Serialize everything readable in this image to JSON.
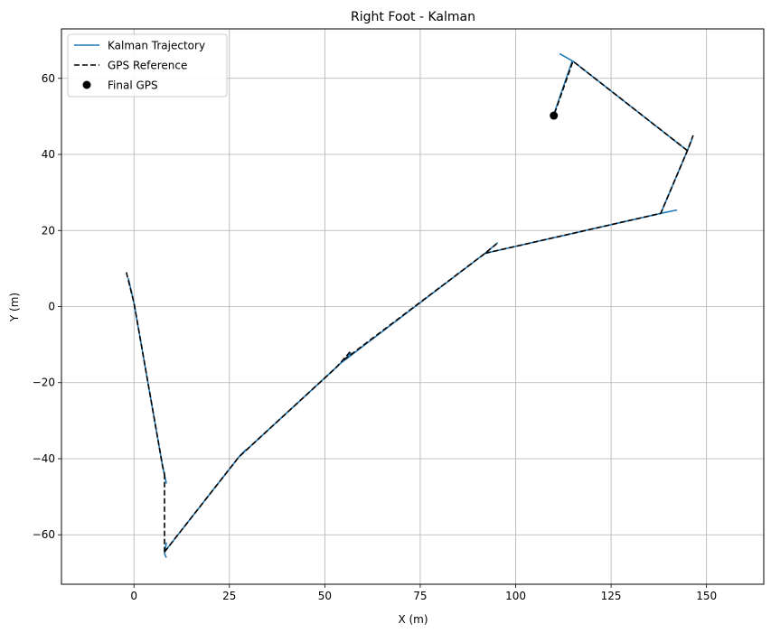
{
  "chart_data": {
    "type": "line",
    "title": "Right Foot - Kalman",
    "xlabel": "X (m)",
    "ylabel": "Y (m)",
    "xlim": [
      -19,
      165
    ],
    "ylim": [
      -73,
      73
    ],
    "xticks": [
      0,
      25,
      50,
      75,
      100,
      125,
      150
    ],
    "yticks": [
      -60,
      -40,
      -20,
      0,
      20,
      40,
      60
    ],
    "xtick_labels": [
      "0",
      "25",
      "50",
      "75",
      "100",
      "125",
      "150"
    ],
    "ytick_labels": [
      "−60",
      "−40",
      "−20",
      "0",
      "20",
      "40",
      "60"
    ],
    "grid": true,
    "legend_position": "top-left",
    "legend": {
      "kalman": "Kalman Trajectory",
      "gps": "GPS Reference",
      "final": "Final GPS"
    },
    "colors": {
      "kalman": "#1f77b4",
      "gps": "#000000",
      "final": "#000000",
      "grid": "#b0b0b0"
    },
    "series": [
      {
        "name": "Kalman Trajectory",
        "style": "solid",
        "segments": [
          [
            [
              -1.5,
              7.5
            ],
            [
              0,
              1
            ],
            [
              7.5,
              -42
            ],
            [
              8.5,
              -46.5
            ]
          ],
          [
            [
              8.5,
              -62
            ],
            [
              8,
              -65
            ],
            [
              8.5,
              -66
            ]
          ],
          [
            [
              8,
              -64.5
            ],
            [
              27.5,
              -39.5
            ],
            [
              29.3,
              -37.6
            ]
          ],
          [
            [
              27.5,
              -39.5
            ],
            [
              53,
              -16
            ],
            [
              55,
              -14
            ],
            [
              57,
              -12.2
            ]
          ],
          [
            [
              54,
              -15
            ],
            [
              92,
              14
            ],
            [
              95.3,
              16.8
            ]
          ],
          [
            [
              92,
              14
            ],
            [
              138,
              24.5
            ],
            [
              142.3,
              25.4
            ]
          ],
          [
            [
              138,
              24.5
            ],
            [
              145,
              41
            ],
            [
              146.2,
              44
            ]
          ],
          [
            [
              145,
              41
            ],
            [
              115,
              64.5
            ],
            [
              111.5,
              66.5
            ]
          ],
          [
            [
              114.8,
              64.5
            ],
            [
              110,
              50.5
            ]
          ]
        ]
      },
      {
        "name": "GPS Reference",
        "style": "dashed",
        "segments": [
          [
            [
              -2,
              9
            ],
            [
              0,
              1
            ],
            [
              7.5,
              -42
            ],
            [
              8,
              -44
            ]
          ],
          [
            [
              8,
              -44
            ],
            [
              8,
              -64.5
            ]
          ],
          [
            [
              8,
              -64.5
            ],
            [
              27.5,
              -39.5
            ],
            [
              53,
              -16
            ],
            [
              57,
              -11.5
            ]
          ],
          [
            [
              55,
              -14
            ],
            [
              92,
              14
            ],
            [
              95,
              16.5
            ]
          ],
          [
            [
              92,
              14
            ],
            [
              138,
              24.5
            ],
            [
              145,
              41
            ],
            [
              146.5,
              45
            ]
          ],
          [
            [
              145,
              41
            ],
            [
              115,
              64.5
            ],
            [
              110,
              50.2
            ]
          ]
        ]
      }
    ],
    "final_gps": {
      "name": "Final GPS",
      "x": 110,
      "y": 50.2
    }
  }
}
